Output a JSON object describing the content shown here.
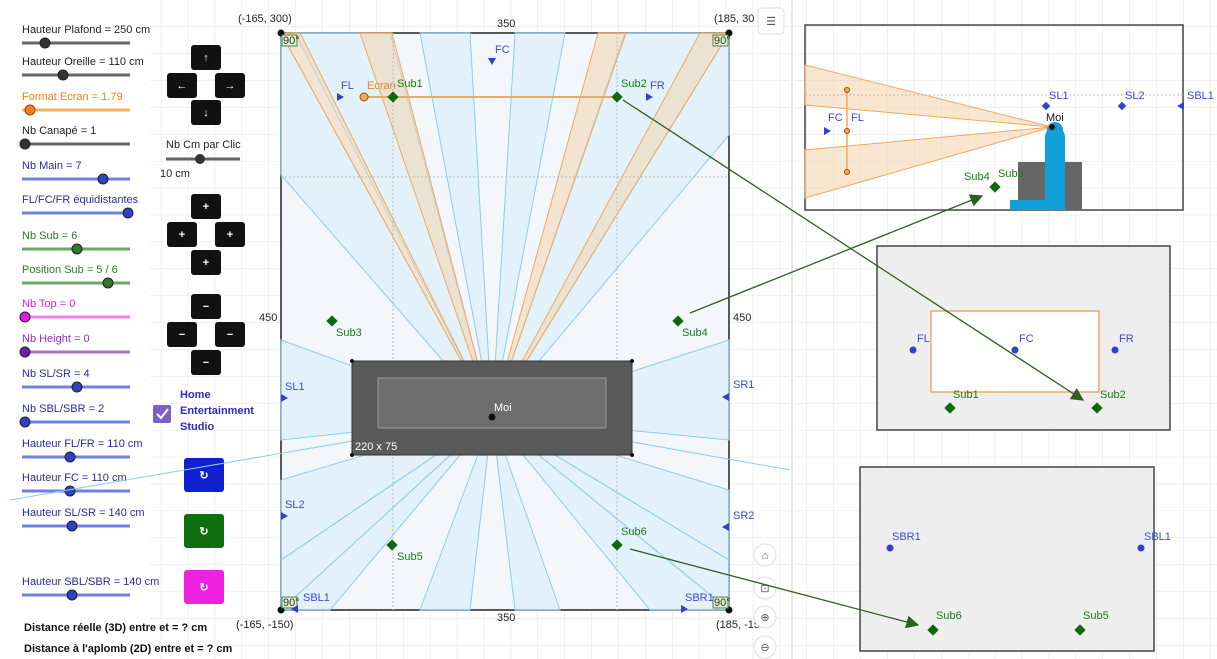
{
  "sliders": [
    "Hauteur Plafond = 250 cm",
    "Hauteur Oreille = 110 cm",
    "Format Ecran = 1.79",
    "Nb Canapé = 1",
    "Nb Main = 7",
    "FL/FC/FR équidistantes",
    "Nb Sub = 6",
    "Position Sub = 5 / 6",
    "Nb Top = 0",
    "Nb Height = 0",
    "Nb SL/SR = 4",
    "Nb SBL/SBR = 2",
    "Hauteur FL/FR = 110 cm",
    "Hauteur FC = 110 cm",
    "Hauteur SL/SR = 140 cm",
    "Hauteur SBL/SBR = 140 cm"
  ],
  "step_control": {
    "label": "Nb Cm par Clic",
    "value": "10 cm"
  },
  "checkbox_label": [
    "Home",
    "Entertainment",
    "Studio"
  ],
  "distance_lines": [
    "Distance réelle (3D) entre  et  = ? cm",
    "Distance à l'aplomb (2D) entre  et  = ? cm"
  ],
  "main_view": {
    "corners": [
      "(-165, 300)",
      "(185, 30",
      "(-165, -150)",
      "(185, -15"
    ],
    "dimensions": [
      "350",
      "450",
      "450",
      "350"
    ],
    "angle_marks": [
      "90°",
      "90°",
      "90°",
      "90°"
    ],
    "speakers": [
      "FC",
      "FL",
      "FR",
      "SL1",
      "SR1",
      "SL2",
      "SR2",
      "SBL1",
      "SBR1"
    ],
    "subs": [
      "Sub1",
      "Sub2",
      "Sub3",
      "Sub4",
      "Sub5",
      "Sub6"
    ],
    "screen": "Ecran",
    "listener": "Moi",
    "couch": "220 x 75"
  },
  "side_view": {
    "speakers": [
      "FC",
      "FL",
      "SL1",
      "SL2",
      "SBL1"
    ],
    "listener": "Moi",
    "subs": [
      "Sub4",
      "Sub3"
    ]
  },
  "front_view": {
    "speakers": [
      "FL",
      "FC",
      "FR"
    ],
    "subs": [
      "Sub1",
      "Sub2"
    ]
  },
  "rear_view": {
    "speakers": [
      "SBR1",
      "SBL1"
    ],
    "subs": [
      "Sub6",
      "Sub5"
    ]
  }
}
